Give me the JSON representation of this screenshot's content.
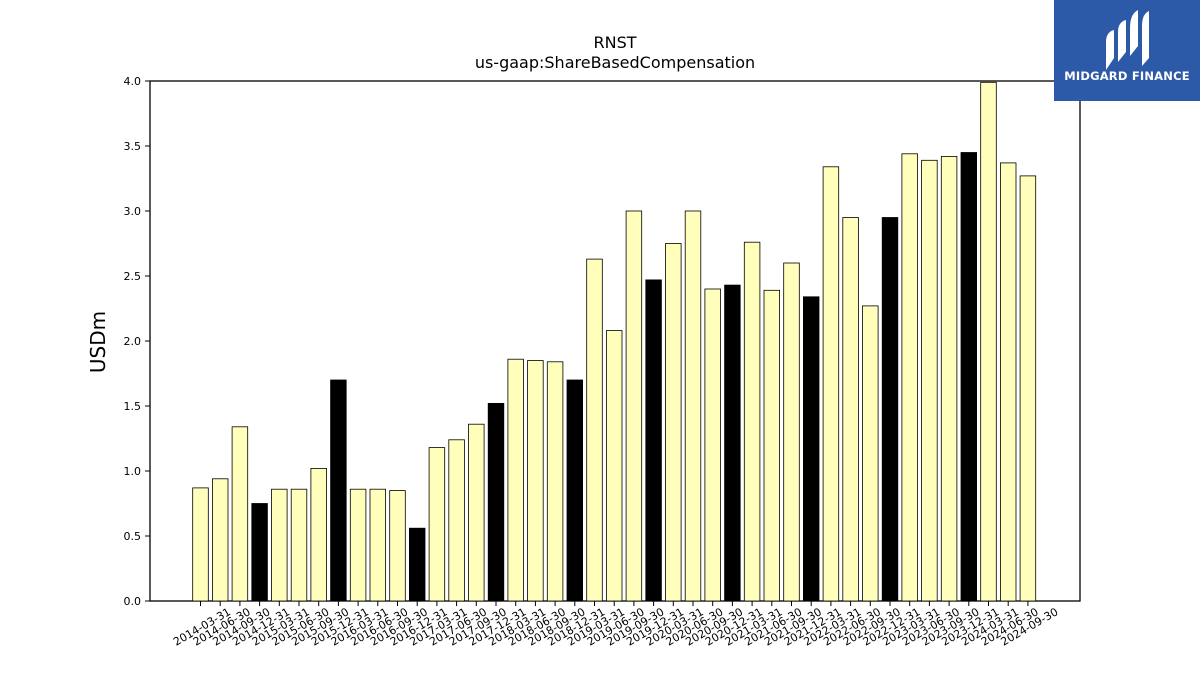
{
  "chart_data": {
    "type": "bar",
    "title": "RNST",
    "subtitle": "us-gaap:ShareBasedCompensation",
    "xlabel": "",
    "ylabel": "USDm",
    "ylim": [
      0,
      4.0
    ],
    "yticks": [
      "0.0",
      "0.5",
      "1.0",
      "1.5",
      "2.0",
      "2.5",
      "3.0",
      "3.5",
      "4.0"
    ],
    "grid": false,
    "legend": "none",
    "colors": {
      "quarter": "#ffffbb",
      "year_end": "#000000",
      "edge": "#000000"
    },
    "categories": [
      "2014-03-31",
      "2014-06-30",
      "2014-09-30",
      "2014-12-31",
      "2015-03-31",
      "2015-06-30",
      "2015-09-30",
      "2015-12-31",
      "2016-03-31",
      "2016-06-30",
      "2016-09-30",
      "2016-12-31",
      "2017-03-31",
      "2017-06-30",
      "2017-09-30",
      "2017-12-31",
      "2018-03-31",
      "2018-06-30",
      "2018-09-30",
      "2018-12-31",
      "2019-03-31",
      "2019-06-30",
      "2019-09-30",
      "2019-12-31",
      "2020-03-31",
      "2020-06-30",
      "2020-09-30",
      "2020-12-31",
      "2021-03-31",
      "2021-06-30",
      "2021-09-30",
      "2021-12-31",
      "2022-03-31",
      "2022-06-30",
      "2022-09-30",
      "2022-12-31",
      "2023-03-31",
      "2023-06-30",
      "2023-09-30",
      "2023-12-31",
      "2024-03-31",
      "2024-06-30",
      "2024-09-30"
    ],
    "values": [
      0.87,
      0.94,
      1.34,
      0.75,
      0.86,
      0.86,
      1.02,
      1.7,
      0.86,
      0.86,
      0.85,
      0.56,
      1.18,
      1.24,
      1.36,
      1.52,
      1.86,
      1.85,
      1.84,
      1.7,
      2.63,
      2.08,
      3.0,
      2.47,
      2.75,
      3.0,
      2.4,
      2.43,
      2.76,
      2.39,
      2.6,
      2.34,
      3.34,
      2.95,
      2.27,
      2.95,
      3.44,
      3.39,
      3.42,
      3.45,
      3.99,
      3.37,
      3.27
    ]
  },
  "logo": {
    "text": "MIDGARD FINANCE",
    "icon": "midgard-logo-icon"
  }
}
